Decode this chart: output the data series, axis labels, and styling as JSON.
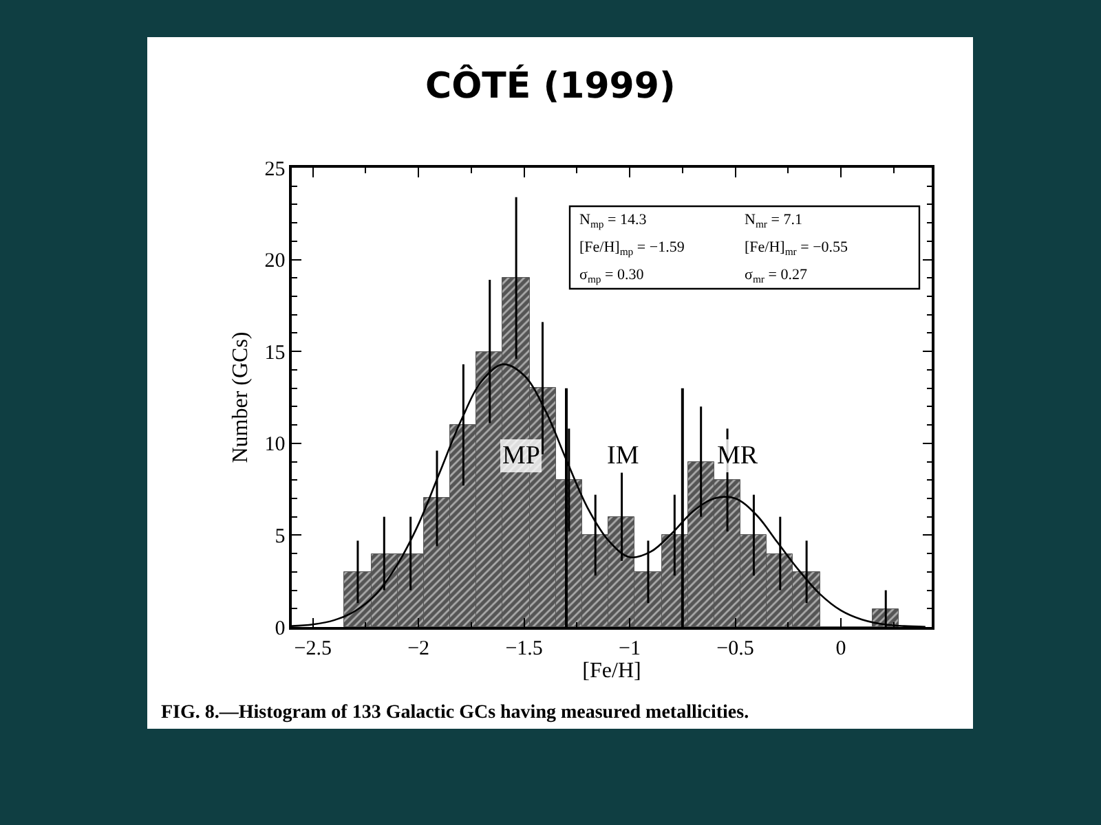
{
  "chart_data": {
    "type": "histogram",
    "title": "CÔTÉ (1999)",
    "xlabel": "[Fe/H]",
    "ylabel": "Number (GCs)",
    "bins": [
      -2.35,
      -2.225,
      -2.1,
      -1.975,
      -1.85,
      -1.725,
      -1.6,
      -1.475,
      -1.35,
      -1.225,
      -1.1,
      -0.975,
      -0.85,
      -0.725,
      -0.6,
      -0.475,
      -0.35,
      -0.225,
      -0.1,
      0.025,
      0.15,
      0.275
    ],
    "values": [
      3,
      4,
      4,
      7,
      11,
      15,
      19,
      13,
      8,
      5,
      6,
      3,
      5,
      9,
      8,
      5,
      4,
      3,
      0,
      0,
      1
    ],
    "errors": [
      1.7,
      2.0,
      2.0,
      2.6,
      3.3,
      3.9,
      4.4,
      3.6,
      2.8,
      2.2,
      2.4,
      1.7,
      2.2,
      3.0,
      2.8,
      2.2,
      2.0,
      1.7,
      null,
      null,
      1.0
    ],
    "color": "#555555",
    "series": [
      {
        "type": "line",
        "color": "#000000",
        "x": [
          -2.6,
          -2.5,
          -2.4,
          -2.3,
          -2.2,
          -2.1,
          -2.0,
          -1.9,
          -1.8,
          -1.7,
          -1.6,
          -1.5,
          -1.4,
          -1.3,
          -1.2,
          -1.1,
          -1.0,
          -0.9,
          -0.8,
          -0.7,
          -0.6,
          -0.5,
          -0.4,
          -0.3,
          -0.2,
          -0.1,
          0.0,
          0.1,
          0.2,
          0.3,
          0.4
        ],
        "values": [
          0.05,
          0.14,
          0.37,
          0.87,
          1.8,
          3.4,
          5.6,
          8.4,
          11.2,
          13.4,
          14.3,
          13.7,
          11.8,
          9.1,
          6.5,
          4.7,
          3.8,
          4.1,
          5.1,
          6.3,
          7.0,
          7.0,
          6.1,
          4.6,
          3.1,
          1.8,
          0.9,
          0.4,
          0.15,
          0.05,
          0.01
        ]
      }
    ],
    "ref_lines": [
      {
        "axis": "x",
        "value": -1.3,
        "color": "#000000"
      },
      {
        "axis": "x",
        "value": -0.75,
        "color": "#000000"
      }
    ],
    "xlim": [
      -2.6,
      0.43
    ],
    "xticks": [
      -2.5,
      -2,
      -1.5,
      -1,
      -0.5,
      0
    ],
    "ylim": [
      0,
      25
    ],
    "yticks": [
      0,
      5,
      10,
      15,
      20,
      25
    ],
    "annotations": [
      "MP",
      "IM",
      "MR",
      "N$_{mp}$ = 14.3",
      "N$_{mr}$ = 7.1",
      "[Fe/H]$_{mp}$ = −1.59",
      "[Fe/H]$_{mr}$ = −0.55",
      "σ$_{mp}$ = 0.30",
      "σ$_{mr}$ = 0.27",
      "FIG. 8.—Histogram of 133 Galactic GCs having measured metallicities."
    ]
  }
}
